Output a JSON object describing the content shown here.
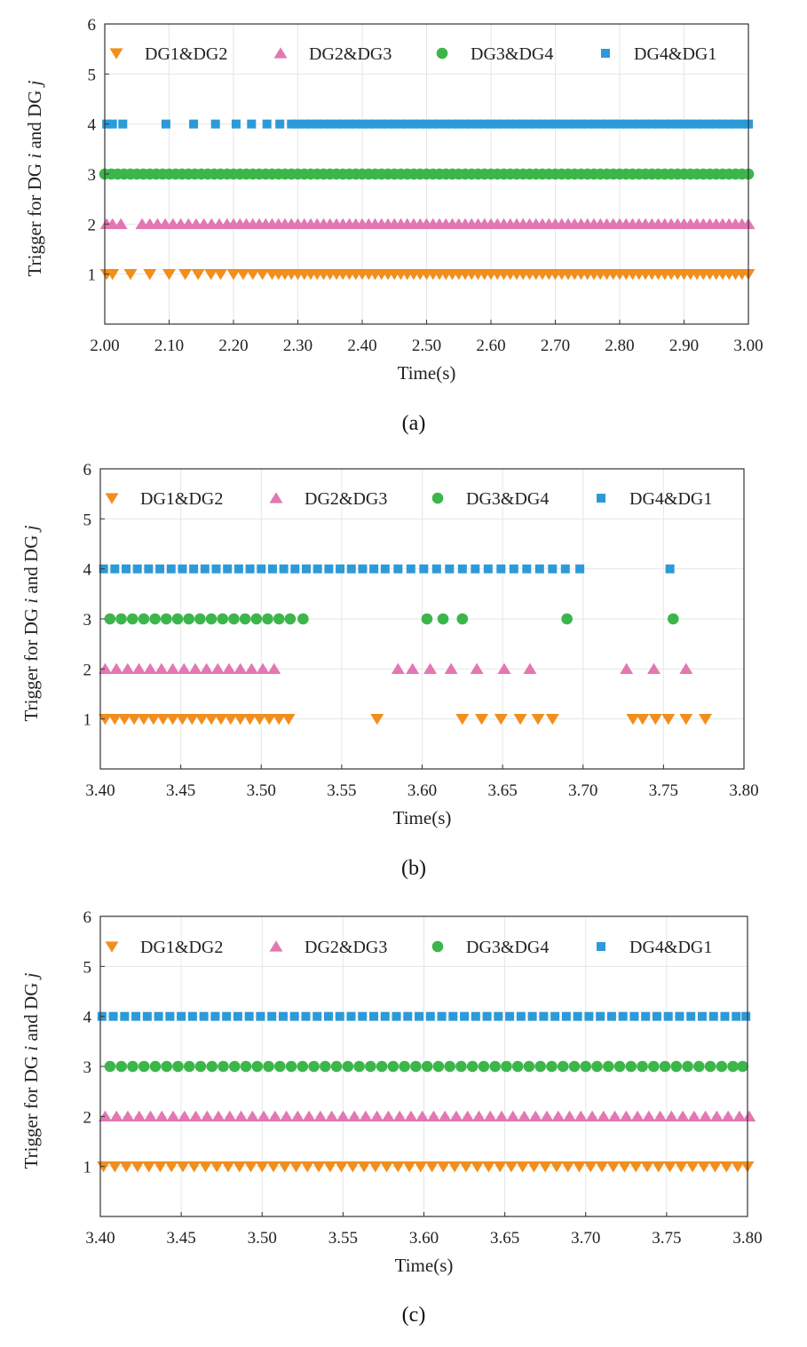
{
  "figure": {
    "colors": {
      "DG1&DG2": "#f28e1c",
      "DG2&DG3": "#e377b3",
      "DG3&DG4": "#3cb64a",
      "DG4&DG1": "#2c9ad8"
    },
    "legend": [
      "DG1&DG2",
      "DG2&DG3",
      "DG3&DG4",
      "DG4&DG1"
    ],
    "marker_shapes": {
      "DG1&DG2": "triangle-down",
      "DG2&DG3": "triangle-up",
      "DG3&DG4": "circle",
      "DG4&DG1": "square"
    }
  },
  "chart_data": [
    {
      "type": "scatter",
      "caption": "(a)",
      "xlabel": "Time(s)",
      "ylabel_parts": [
        "Trigger for DG ",
        "i",
        " and DG ",
        "j"
      ],
      "xlim": [
        2.0,
        3.0
      ],
      "ylim": [
        0,
        6
      ],
      "xticks": [
        2.0,
        2.1,
        2.2,
        2.3,
        2.4,
        2.5,
        2.6,
        2.7,
        2.8,
        2.9,
        3.0
      ],
      "xtick_labels": [
        "2.00",
        "2.10",
        "2.20",
        "2.30",
        "2.40",
        "2.50",
        "2.60",
        "2.70",
        "2.80",
        "2.90",
        "3.00"
      ],
      "yticks": [
        1,
        2,
        3,
        4,
        5,
        6
      ],
      "ytick_labels": [
        "1",
        "2",
        "3",
        "4",
        "5",
        "6"
      ],
      "legend_location": "top",
      "series": [
        {
          "name": "DG1&DG2",
          "level": 1,
          "x": [
            2.003,
            2.012,
            2.04,
            2.07,
            2.1,
            2.125,
            2.145,
            2.165,
            2.18,
            2.2,
            2.215,
            2.23,
            2.245,
            2.26,
            2.27,
            2.28,
            2.29,
            2.3,
            2.31,
            2.32,
            2.33,
            2.34,
            2.35,
            2.36,
            2.37,
            2.38,
            2.39,
            2.4,
            2.41,
            2.42,
            2.43,
            2.44,
            2.45,
            2.46,
            2.47,
            2.48,
            2.49,
            2.5,
            2.51,
            2.52,
            2.53,
            2.54,
            2.55,
            2.56,
            2.57,
            2.58,
            2.59,
            2.6,
            2.61,
            2.62,
            2.63,
            2.64,
            2.65,
            2.66,
            2.67,
            2.68,
            2.69,
            2.7,
            2.71,
            2.72,
            2.73,
            2.74,
            2.75,
            2.76,
            2.77,
            2.78,
            2.79,
            2.8,
            2.81,
            2.82,
            2.83,
            2.84,
            2.85,
            2.86,
            2.87,
            2.88,
            2.89,
            2.9,
            2.91,
            2.92,
            2.93,
            2.94,
            2.95,
            2.96,
            2.97,
            2.98,
            2.99,
            3.0
          ]
        },
        {
          "name": "DG2&DG3",
          "level": 2,
          "x": [
            2.003,
            2.012,
            2.025,
            2.058,
            2.07,
            2.082,
            2.094,
            2.106,
            2.118,
            2.13,
            2.142,
            2.154,
            2.166,
            2.178,
            2.19,
            2.2,
            2.21,
            2.22,
            2.23,
            2.24,
            2.25,
            2.26,
            2.27,
            2.28,
            2.29,
            2.3,
            2.31,
            2.32,
            2.33,
            2.34,
            2.35,
            2.36,
            2.37,
            2.38,
            2.39,
            2.4,
            2.41,
            2.42,
            2.43,
            2.44,
            2.45,
            2.46,
            2.47,
            2.48,
            2.49,
            2.5,
            2.51,
            2.52,
            2.53,
            2.54,
            2.55,
            2.56,
            2.57,
            2.58,
            2.59,
            2.6,
            2.61,
            2.62,
            2.63,
            2.64,
            2.65,
            2.66,
            2.67,
            2.68,
            2.69,
            2.7,
            2.71,
            2.72,
            2.73,
            2.74,
            2.75,
            2.76,
            2.77,
            2.78,
            2.79,
            2.8,
            2.81,
            2.82,
            2.83,
            2.84,
            2.85,
            2.86,
            2.87,
            2.88,
            2.89,
            2.9,
            2.91,
            2.92,
            2.93,
            2.94,
            2.95,
            2.96,
            2.97,
            2.98,
            2.99,
            3.0
          ]
        },
        {
          "name": "DG3&DG4",
          "level": 3,
          "x": [
            2.0,
            2.01,
            2.02,
            2.03,
            2.04,
            2.05,
            2.06,
            2.07,
            2.08,
            2.09,
            2.1,
            2.11,
            2.12,
            2.13,
            2.14,
            2.15,
            2.16,
            2.17,
            2.18,
            2.19,
            2.2,
            2.21,
            2.22,
            2.23,
            2.24,
            2.25,
            2.26,
            2.27,
            2.28,
            2.29,
            2.3,
            2.31,
            2.32,
            2.33,
            2.34,
            2.35,
            2.36,
            2.37,
            2.38,
            2.39,
            2.4,
            2.41,
            2.42,
            2.43,
            2.44,
            2.45,
            2.46,
            2.47,
            2.48,
            2.49,
            2.5,
            2.51,
            2.52,
            2.53,
            2.54,
            2.55,
            2.56,
            2.57,
            2.58,
            2.59,
            2.6,
            2.61,
            2.62,
            2.63,
            2.64,
            2.65,
            2.66,
            2.67,
            2.68,
            2.69,
            2.7,
            2.71,
            2.72,
            2.73,
            2.74,
            2.75,
            2.76,
            2.77,
            2.78,
            2.79,
            2.8,
            2.81,
            2.82,
            2.83,
            2.84,
            2.85,
            2.86,
            2.87,
            2.88,
            2.89,
            2.9,
            2.91,
            2.92,
            2.93,
            2.94,
            2.95,
            2.96,
            2.97,
            2.98,
            2.99,
            3.0
          ]
        },
        {
          "name": "DG4&DG1",
          "level": 4,
          "x": [
            2.003,
            2.012,
            2.028,
            2.095,
            2.138,
            2.172,
            2.204,
            2.228,
            2.252,
            2.272,
            2.29,
            2.3,
            2.31,
            2.32,
            2.33,
            2.34,
            2.35,
            2.36,
            2.37,
            2.38,
            2.39,
            2.4,
            2.41,
            2.42,
            2.43,
            2.44,
            2.45,
            2.46,
            2.47,
            2.48,
            2.49,
            2.5,
            2.51,
            2.52,
            2.53,
            2.54,
            2.55,
            2.56,
            2.57,
            2.58,
            2.59,
            2.6,
            2.61,
            2.62,
            2.63,
            2.64,
            2.65,
            2.66,
            2.67,
            2.68,
            2.69,
            2.7,
            2.71,
            2.72,
            2.73,
            2.74,
            2.75,
            2.76,
            2.77,
            2.78,
            2.79,
            2.8,
            2.81,
            2.82,
            2.83,
            2.84,
            2.85,
            2.86,
            2.87,
            2.88,
            2.89,
            2.9,
            2.91,
            2.92,
            2.93,
            2.94,
            2.95,
            2.96,
            2.97,
            2.98,
            2.99,
            3.0
          ]
        }
      ]
    },
    {
      "type": "scatter",
      "caption": "(b)",
      "xlabel": "Time(s)",
      "ylabel_parts": [
        "Trigger for DG ",
        "i",
        " and DG ",
        "j"
      ],
      "xlim": [
        3.4,
        3.8
      ],
      "ylim": [
        0,
        6
      ],
      "xticks": [
        3.4,
        3.45,
        3.5,
        3.55,
        3.6,
        3.65,
        3.7,
        3.75,
        3.8
      ],
      "xtick_labels": [
        "3.40",
        "3.45",
        "3.50",
        "3.55",
        "3.60",
        "3.65",
        "3.70",
        "3.75",
        "3.80"
      ],
      "yticks": [
        1,
        2,
        3,
        4,
        5,
        6
      ],
      "ytick_labels": [
        "1",
        "2",
        "3",
        "4",
        "5",
        "6"
      ],
      "legend_location": "top",
      "series": [
        {
          "name": "DG1&DG2",
          "level": 1,
          "x": [
            3.403,
            3.409,
            3.415,
            3.421,
            3.427,
            3.433,
            3.439,
            3.445,
            3.451,
            3.457,
            3.463,
            3.469,
            3.475,
            3.481,
            3.487,
            3.493,
            3.499,
            3.505,
            3.511,
            3.517,
            3.572,
            3.625,
            3.637,
            3.649,
            3.661,
            3.672,
            3.681,
            3.731,
            3.737,
            3.745,
            3.753,
            3.764,
            3.776
          ]
        },
        {
          "name": "DG2&DG3",
          "level": 2,
          "x": [
            3.403,
            3.41,
            3.417,
            3.424,
            3.431,
            3.438,
            3.445,
            3.452,
            3.459,
            3.466,
            3.473,
            3.48,
            3.487,
            3.494,
            3.501,
            3.508,
            3.585,
            3.594,
            3.605,
            3.618,
            3.634,
            3.651,
            3.667,
            3.727,
            3.744,
            3.764
          ]
        },
        {
          "name": "DG3&DG4",
          "level": 3,
          "x": [
            3.406,
            3.413,
            3.42,
            3.427,
            3.434,
            3.441,
            3.448,
            3.455,
            3.462,
            3.469,
            3.476,
            3.483,
            3.49,
            3.497,
            3.504,
            3.511,
            3.518,
            3.526,
            3.603,
            3.613,
            3.625,
            3.69,
            3.756
          ]
        },
        {
          "name": "DG4&DG1",
          "level": 4,
          "x": [
            3.402,
            3.409,
            3.416,
            3.423,
            3.43,
            3.437,
            3.444,
            3.451,
            3.458,
            3.465,
            3.472,
            3.479,
            3.486,
            3.493,
            3.5,
            3.507,
            3.514,
            3.521,
            3.528,
            3.535,
            3.542,
            3.549,
            3.556,
            3.563,
            3.57,
            3.577,
            3.585,
            3.593,
            3.601,
            3.609,
            3.617,
            3.625,
            3.633,
            3.641,
            3.649,
            3.657,
            3.665,
            3.673,
            3.681,
            3.689,
            3.698,
            3.754
          ]
        }
      ]
    },
    {
      "type": "scatter",
      "caption": "(c)",
      "xlabel": "Time(s)",
      "ylabel_parts": [
        "Trigger for DG ",
        "i",
        " and DG ",
        "j"
      ],
      "xlim": [
        3.4,
        3.8
      ],
      "ylim": [
        0,
        6
      ],
      "xticks": [
        3.4,
        3.45,
        3.5,
        3.55,
        3.6,
        3.65,
        3.7,
        3.75,
        3.8
      ],
      "xtick_labels": [
        "3.40",
        "3.45",
        "3.50",
        "3.55",
        "3.60",
        "3.65",
        "3.70",
        "3.75",
        "3.80"
      ],
      "yticks": [
        1,
        2,
        3,
        4,
        5,
        6
      ],
      "ytick_labels": [
        "1",
        "2",
        "3",
        "4",
        "5",
        "6"
      ],
      "legend_location": "top",
      "series": [
        {
          "name": "DG1&DG2",
          "level": 1,
          "x": [
            3.402,
            3.409,
            3.416,
            3.423,
            3.43,
            3.437,
            3.444,
            3.451,
            3.458,
            3.465,
            3.472,
            3.479,
            3.486,
            3.493,
            3.5,
            3.507,
            3.514,
            3.521,
            3.528,
            3.535,
            3.542,
            3.549,
            3.556,
            3.563,
            3.57,
            3.577,
            3.584,
            3.591,
            3.598,
            3.605,
            3.612,
            3.619,
            3.626,
            3.633,
            3.64,
            3.647,
            3.654,
            3.661,
            3.668,
            3.675,
            3.682,
            3.689,
            3.696,
            3.703,
            3.71,
            3.717,
            3.724,
            3.731,
            3.738,
            3.745,
            3.752,
            3.759,
            3.766,
            3.773,
            3.78,
            3.787,
            3.794,
            3.8
          ]
        },
        {
          "name": "DG2&DG3",
          "level": 2,
          "x": [
            3.403,
            3.41,
            3.417,
            3.424,
            3.431,
            3.438,
            3.445,
            3.452,
            3.459,
            3.466,
            3.473,
            3.48,
            3.487,
            3.494,
            3.501,
            3.508,
            3.515,
            3.522,
            3.529,
            3.536,
            3.543,
            3.55,
            3.557,
            3.564,
            3.571,
            3.578,
            3.585,
            3.592,
            3.599,
            3.606,
            3.613,
            3.62,
            3.627,
            3.634,
            3.641,
            3.648,
            3.655,
            3.662,
            3.669,
            3.676,
            3.683,
            3.69,
            3.697,
            3.704,
            3.711,
            3.718,
            3.725,
            3.732,
            3.739,
            3.746,
            3.753,
            3.76,
            3.767,
            3.774,
            3.781,
            3.788,
            3.795,
            3.801
          ]
        },
        {
          "name": "DG3&DG4",
          "level": 3,
          "x": [
            3.406,
            3.413,
            3.42,
            3.427,
            3.434,
            3.441,
            3.448,
            3.455,
            3.462,
            3.469,
            3.476,
            3.483,
            3.49,
            3.497,
            3.504,
            3.511,
            3.518,
            3.525,
            3.532,
            3.539,
            3.546,
            3.553,
            3.56,
            3.567,
            3.574,
            3.581,
            3.588,
            3.595,
            3.602,
            3.609,
            3.616,
            3.623,
            3.63,
            3.637,
            3.644,
            3.651,
            3.658,
            3.665,
            3.672,
            3.679,
            3.686,
            3.693,
            3.7,
            3.707,
            3.714,
            3.721,
            3.728,
            3.735,
            3.742,
            3.749,
            3.756,
            3.763,
            3.77,
            3.777,
            3.784,
            3.791,
            3.797
          ]
        },
        {
          "name": "DG4&DG1",
          "level": 4,
          "x": [
            3.401,
            3.408,
            3.415,
            3.422,
            3.429,
            3.436,
            3.443,
            3.45,
            3.457,
            3.464,
            3.471,
            3.478,
            3.485,
            3.492,
            3.499,
            3.506,
            3.513,
            3.52,
            3.527,
            3.534,
            3.541,
            3.548,
            3.555,
            3.562,
            3.569,
            3.576,
            3.583,
            3.59,
            3.597,
            3.604,
            3.611,
            3.618,
            3.625,
            3.632,
            3.639,
            3.646,
            3.653,
            3.66,
            3.667,
            3.674,
            3.681,
            3.688,
            3.695,
            3.702,
            3.709,
            3.716,
            3.723,
            3.73,
            3.737,
            3.744,
            3.751,
            3.758,
            3.765,
            3.772,
            3.779,
            3.786,
            3.793,
            3.799
          ]
        }
      ]
    }
  ]
}
